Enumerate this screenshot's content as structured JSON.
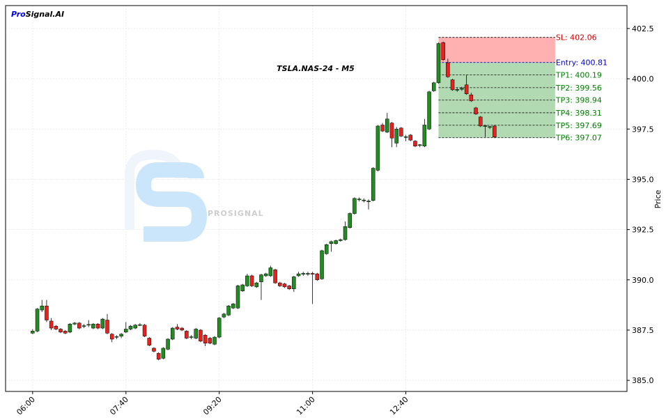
{
  "logo": {
    "prefix": "Pro",
    "rest": "Signal.AI"
  },
  "watermark": "PROSIGNAL",
  "chart_data": {
    "type": "candlestick",
    "title": "TSLA.NAS-24 - M5",
    "ylabel": "Price",
    "x": [
      "06:00",
      "06:05",
      "06:10",
      "06:15",
      "06:20",
      "06:25",
      "06:30",
      "06:35",
      "06:40",
      "06:45",
      "06:50",
      "06:55",
      "07:00",
      "07:05",
      "07:10",
      "07:15",
      "07:20",
      "07:25",
      "07:30",
      "07:35",
      "07:40",
      "07:45",
      "07:50",
      "07:55",
      "08:00",
      "08:05",
      "08:10",
      "08:15",
      "08:20",
      "08:25",
      "08:30",
      "08:35",
      "08:40",
      "08:45",
      "08:50",
      "08:55",
      "09:00",
      "09:05",
      "09:10",
      "09:15",
      "09:20",
      "09:25",
      "09:30",
      "09:35",
      "09:40",
      "09:45",
      "09:50",
      "09:55",
      "10:00",
      "10:05",
      "10:10",
      "10:15",
      "10:20",
      "10:25",
      "10:30",
      "10:35",
      "10:40",
      "10:45",
      "10:50",
      "10:55",
      "11:00",
      "11:05",
      "11:10",
      "11:15",
      "11:20",
      "11:25",
      "11:30",
      "11:35",
      "11:40",
      "11:45",
      "11:50",
      "11:55",
      "12:00",
      "12:05",
      "12:10",
      "12:15",
      "12:20",
      "12:25",
      "12:30",
      "12:35",
      "12:40",
      "12:45",
      "12:50",
      "12:55",
      "13:00",
      "13:05",
      "13:10",
      "13:15",
      "13:20",
      "13:25",
      "13:30",
      "13:35",
      "13:40",
      "13:45",
      "13:50",
      "13:55",
      "14:00",
      "14:05",
      "14:10",
      "14:15"
    ],
    "open": [
      387.35,
      387.45,
      388.5,
      388.7,
      387.95,
      387.7,
      387.55,
      387.45,
      387.4,
      387.8,
      387.85,
      387.7,
      387.75,
      387.6,
      387.8,
      387.6,
      388.0,
      387.3,
      387.15,
      387.2,
      387.4,
      387.55,
      387.6,
      387.75,
      387.75,
      387.1,
      386.6,
      386.35,
      386.1,
      386.55,
      387.05,
      387.65,
      387.6,
      387.45,
      387.15,
      387.1,
      387.5,
      387.25,
      387.1,
      386.8,
      387.15,
      388.15,
      388.25,
      388.6,
      388.6,
      389.45,
      389.7,
      390.2,
      389.65,
      389.9,
      390.2,
      390.2,
      390.5,
      389.85,
      389.8,
      389.7,
      389.55,
      390.2,
      390.28,
      390.28,
      390.32,
      390.3,
      390.05,
      391.3,
      391.8,
      391.8,
      391.95,
      392.0,
      392.6,
      393.3,
      393.98,
      393.93,
      393.88,
      393.95,
      395.45,
      397.7,
      397.35,
      397.8,
      396.8,
      397.55,
      397.08,
      397.2,
      396.9,
      396.68,
      396.65,
      397.5,
      399.4,
      399.8,
      401.8,
      400.8,
      399.95,
      399.43,
      399.48,
      399.7,
      399.2,
      398.55,
      398.1,
      397.63,
      397.58,
      397.65
    ],
    "high": [
      387.55,
      388.6,
      389.0,
      389.0,
      388.1,
      387.75,
      387.6,
      387.5,
      387.85,
      387.9,
      387.9,
      387.8,
      388.0,
      387.85,
      387.85,
      388.1,
      388.3,
      387.35,
      387.25,
      387.35,
      387.9,
      387.75,
      387.8,
      387.85,
      387.8,
      387.15,
      386.65,
      386.4,
      386.65,
      387.1,
      387.65,
      387.8,
      387.65,
      387.5,
      387.25,
      387.6,
      387.55,
      387.3,
      387.15,
      387.2,
      388.15,
      388.35,
      388.75,
      388.85,
      389.75,
      389.8,
      390.3,
      390.25,
      389.9,
      390.3,
      390.35,
      390.7,
      390.55,
      389.9,
      389.85,
      389.75,
      390.2,
      390.4,
      390.4,
      390.4,
      390.4,
      390.35,
      391.5,
      391.8,
      391.95,
      392.0,
      392.05,
      392.9,
      393.35,
      394.1,
      394.1,
      394.05,
      394.0,
      395.6,
      397.7,
      397.8,
      398.3,
      397.85,
      397.6,
      397.6,
      397.2,
      397.25,
      396.95,
      396.75,
      398.0,
      399.4,
      399.85,
      401.8,
      401.85,
      401.0,
      400.0,
      399.55,
      399.6,
      400.2,
      399.3,
      398.6,
      398.15,
      397.7,
      397.65,
      397.7
    ],
    "low": [
      387.3,
      387.4,
      388.4,
      387.9,
      387.5,
      387.5,
      387.35,
      387.3,
      387.35,
      387.75,
      387.55,
      387.6,
      387.65,
      387.55,
      387.55,
      387.55,
      387.3,
      386.9,
      387.05,
      387.1,
      387.35,
      387.5,
      387.55,
      387.7,
      387.15,
      386.7,
      386.4,
      386.0,
      386.05,
      386.5,
      387.0,
      387.5,
      387.45,
      387.05,
      387.05,
      387.05,
      386.9,
      386.7,
      386.8,
      386.75,
      387.1,
      388.1,
      388.2,
      388.55,
      388.55,
      389.4,
      389.65,
      389.65,
      389.6,
      389.0,
      390.15,
      390.15,
      389.8,
      389.65,
      389.6,
      389.5,
      389.4,
      390.15,
      390.2,
      390.2,
      388.8,
      389.95,
      390.0,
      391.25,
      391.4,
      391.75,
      391.9,
      391.95,
      392.55,
      393.25,
      393.9,
      393.85,
      393.5,
      393.9,
      395.4,
      397.35,
      397.3,
      396.6,
      396.6,
      397.1,
      396.9,
      396.9,
      396.6,
      396.6,
      396.6,
      397.45,
      399.35,
      399.75,
      400.9,
      400.05,
      399.4,
      399.35,
      399.4,
      399.2,
      398.85,
      398.2,
      397.6,
      397.1,
      397.5,
      397.05
    ],
    "close": [
      387.45,
      388.55,
      388.7,
      388.0,
      387.6,
      387.55,
      387.4,
      387.35,
      387.8,
      387.85,
      387.6,
      387.72,
      387.78,
      387.8,
      387.6,
      388.05,
      387.35,
      387.05,
      387.18,
      387.3,
      387.55,
      387.7,
      387.75,
      387.77,
      387.2,
      386.75,
      386.45,
      386.05,
      386.6,
      387.05,
      387.6,
      387.55,
      387.5,
      387.1,
      387.17,
      387.55,
      386.95,
      386.85,
      386.85,
      387.15,
      388.1,
      388.3,
      388.7,
      388.8,
      389.7,
      389.75,
      390.2,
      389.7,
      389.85,
      390.25,
      390.3,
      390.6,
      389.85,
      389.7,
      389.65,
      389.55,
      390.15,
      390.3,
      390.32,
      390.32,
      390.28,
      390.0,
      391.45,
      391.75,
      391.9,
      391.95,
      392.0,
      392.65,
      393.3,
      394.05,
      394.02,
      393.97,
      393.92,
      395.55,
      397.65,
      397.4,
      398.0,
      397.05,
      397.5,
      397.15,
      397.12,
      396.95,
      396.65,
      396.72,
      397.7,
      399.35,
      399.8,
      401.75,
      400.95,
      400.1,
      399.45,
      399.47,
      399.52,
      399.25,
      398.9,
      398.25,
      397.65,
      397.67,
      397.62,
      397.1
    ],
    "up_color": "#228b22",
    "down_color": "#e8211d",
    "levels": [
      {
        "label": "SL: 402.06",
        "value": 402.06,
        "color": "#d40000"
      },
      {
        "label": "Entry: 400.81",
        "value": 400.81,
        "color": "#0000cc"
      },
      {
        "label": "TP1: 400.19",
        "value": 400.19,
        "color": "#008000"
      },
      {
        "label": "TP2: 399.56",
        "value": 399.56,
        "color": "#008000"
      },
      {
        "label": "TP3: 398.94",
        "value": 398.94,
        "color": "#008000"
      },
      {
        "label": "TP4: 398.31",
        "value": 398.31,
        "color": "#008000"
      },
      {
        "label": "TP5: 397.69",
        "value": 397.69,
        "color": "#008000"
      },
      {
        "label": "TP6: 397.07",
        "value": 397.07,
        "color": "#008000"
      }
    ],
    "zone_x": [
      "13:15",
      "15:20"
    ],
    "risk_color": "#ffb0b0",
    "reward_color": "#b2dab2",
    "xlim": [
      "05:31",
      "16:37"
    ],
    "xticks": [
      "06:00",
      "07:40",
      "09:20",
      "11:00",
      "12:40"
    ],
    "ylim": [
      384.45,
      403.64
    ],
    "yticks": [
      {
        "value": 385,
        "label": "385.0"
      },
      {
        "value": 387.5,
        "label": "387.5"
      },
      {
        "value": 390,
        "label": "390.0"
      },
      {
        "value": 392.5,
        "label": "392.5"
      },
      {
        "value": 395,
        "label": "395.0"
      },
      {
        "value": 397.5,
        "label": "397.5"
      },
      {
        "value": 400,
        "label": "400.0"
      },
      {
        "value": 402.5,
        "label": "402.5"
      }
    ],
    "grid": true
  }
}
